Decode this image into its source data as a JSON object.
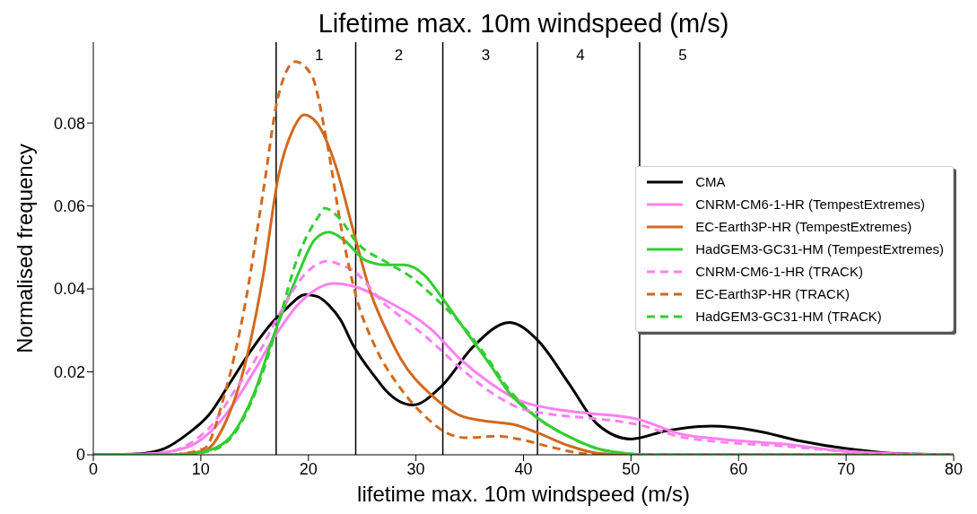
{
  "chart_data": {
    "type": "line",
    "title": "Lifetime max. 10m windspeed (m/s)",
    "xlabel": "lifetime max. 10m windspeed (m/s)",
    "ylabel": "Normalised frequency",
    "xlim": [
      0,
      80
    ],
    "xticks": [
      0,
      10,
      20,
      30,
      40,
      50,
      60,
      70,
      80
    ],
    "ylim": [
      0,
      0.0995
    ],
    "yticks": [
      0,
      0.02,
      0.04,
      0.06,
      0.08
    ],
    "grid": false,
    "legend": "right",
    "marker": "none",
    "ref_lines": [
      {
        "axis": "x",
        "value": 17.0,
        "color": "#000000"
      },
      {
        "axis": "x",
        "value": 24.4,
        "color": "#000000"
      },
      {
        "axis": "x",
        "value": 32.5,
        "color": "#000000"
      },
      {
        "axis": "x",
        "value": 41.3,
        "color": "#000000"
      },
      {
        "axis": "x",
        "value": 50.8,
        "color": "#000000"
      }
    ],
    "annotations": [
      "1",
      "2",
      "3",
      "4",
      "5"
    ],
    "series": [
      {
        "name": "CMA",
        "color": "#000000",
        "line_style": "solid",
        "x": [
          0,
          4,
          6.6,
          8.8,
          10.8,
          12.7,
          14.7,
          16.6,
          18.0,
          19.7,
          20.8,
          21.9,
          23.0,
          24.1,
          26.4,
          27.2,
          29.7,
          32.4,
          35.3,
          38.7,
          41.4,
          44.2,
          46.9,
          50.0,
          53.3,
          57.5,
          61.6,
          65.8,
          70.0,
          74.1,
          80
        ],
        "values": [
          0,
          0.0002,
          0.0015,
          0.0051,
          0.0098,
          0.0173,
          0.0253,
          0.0318,
          0.0354,
          0.0386,
          0.0382,
          0.0361,
          0.0325,
          0.0267,
          0.0181,
          0.0155,
          0.012,
          0.0166,
          0.026,
          0.0319,
          0.0274,
          0.0173,
          0.0073,
          0.0038,
          0.0058,
          0.0069,
          0.0058,
          0.0033,
          0.0015,
          0.0004,
          0
        ]
      },
      {
        "name": "CNRM-CM6-1-HR (TempestExtremes)",
        "color": "#ff80f0",
        "line_style": "solid",
        "x": [
          0,
          5,
          8.8,
          11.0,
          12.9,
          14.8,
          16.8,
          19.0,
          20.6,
          22.3,
          24.5,
          27.2,
          31.4,
          34.1,
          36.9,
          39.7,
          42.5,
          45.3,
          50.6,
          54.5,
          58.7,
          64.2,
          69.8,
          75.3,
          80
        ],
        "values": [
          0,
          0.0002,
          0.0019,
          0.0058,
          0.0117,
          0.0195,
          0.0282,
          0.0361,
          0.0397,
          0.0413,
          0.0404,
          0.0372,
          0.0303,
          0.0231,
          0.0173,
          0.013,
          0.0112,
          0.0102,
          0.0086,
          0.0051,
          0.0037,
          0.0026,
          0.0009,
          0.0002,
          0
        ]
      },
      {
        "name": "EC-Earth3P-HR (TempestExtremes)",
        "color": "#d2691e",
        "line_style": "solid",
        "x": [
          0,
          7,
          10.3,
          12.2,
          14.1,
          15.8,
          17.2,
          18.6,
          19.6,
          20.8,
          22.5,
          24.1,
          25.8,
          27.2,
          28.6,
          31.4,
          34.1,
          36.9,
          39.1,
          41.4,
          44.2,
          46.9,
          50,
          80
        ],
        "values": [
          0,
          0,
          0.0009,
          0.0073,
          0.0217,
          0.0433,
          0.067,
          0.0786,
          0.082,
          0.08,
          0.07,
          0.0548,
          0.039,
          0.0303,
          0.0231,
          0.0145,
          0.0095,
          0.008,
          0.0073,
          0.0052,
          0.0022,
          0.0004,
          0,
          0
        ]
      },
      {
        "name": "HadGEM3-GC31-HM (TempestExtremes)",
        "color": "#32cd32",
        "line_style": "solid",
        "x": [
          0,
          8,
          10.8,
          13.0,
          14.9,
          16.8,
          19.0,
          20.6,
          21.9,
          23.4,
          25.3,
          27.2,
          28.9,
          30.8,
          32.5,
          34.7,
          36.9,
          38.6,
          41.4,
          44.2,
          47.5,
          52,
          80
        ],
        "values": [
          0,
          0,
          0.0011,
          0.0051,
          0.0145,
          0.029,
          0.0433,
          0.0519,
          0.0537,
          0.0516,
          0.0469,
          0.0458,
          0.0458,
          0.0433,
          0.0376,
          0.0296,
          0.0217,
          0.0152,
          0.0087,
          0.0044,
          0.0011,
          0,
          0
        ]
      },
      {
        "name": "CNRM-CM6-1-HR (TRACK)",
        "color": "#ff80f0",
        "line_style": "dashed",
        "x": [
          0,
          6,
          10.8,
          12.9,
          15.1,
          17.3,
          19.6,
          21.8,
          23.0,
          24.0,
          27.2,
          28.6,
          31.4,
          34.1,
          36.9,
          39.7,
          42.5,
          46.7,
          50.6,
          54.5,
          58.7,
          64.2,
          69.8,
          75,
          80
        ],
        "values": [
          0,
          0.0003,
          0.0065,
          0.0145,
          0.0231,
          0.0339,
          0.0433,
          0.0467,
          0.0458,
          0.0447,
          0.0361,
          0.0333,
          0.0274,
          0.021,
          0.0152,
          0.0112,
          0.0098,
          0.0087,
          0.0073,
          0.0044,
          0.003,
          0.0021,
          0.0008,
          0.0001,
          0
        ]
      },
      {
        "name": "EC-Earth3P-HR (TRACK)",
        "color": "#d2691e",
        "line_style": "dashed",
        "x": [
          0,
          7,
          10.3,
          12.2,
          14.1,
          15.8,
          17.2,
          18.8,
          20.3,
          21.7,
          23.1,
          24.5,
          26.1,
          28.6,
          30.8,
          33.0,
          34.7,
          37.5,
          39.7,
          42.5,
          45.3,
          48,
          80
        ],
        "values": [
          0,
          0,
          0.0015,
          0.0145,
          0.0361,
          0.0635,
          0.0865,
          0.0948,
          0.0915,
          0.0757,
          0.0541,
          0.0376,
          0.0267,
          0.0159,
          0.0094,
          0.0051,
          0.0041,
          0.0045,
          0.0037,
          0.0019,
          0.0004,
          0,
          0
        ]
      },
      {
        "name": "HadGEM3-GC31-HM (TRACK)",
        "color": "#32cd32",
        "line_style": "dashed",
        "x": [
          0,
          8,
          11.0,
          13.3,
          15.2,
          17.2,
          19.0,
          21.0,
          21.5,
          22.9,
          24.5,
          27.2,
          29.7,
          31.9,
          34.1,
          36.3,
          38.6,
          41.4,
          44.2,
          47.5,
          52,
          80
        ],
        "values": [
          0,
          0,
          0.001,
          0.0058,
          0.0159,
          0.0318,
          0.0476,
          0.0577,
          0.0595,
          0.057,
          0.0512,
          0.0465,
          0.0426,
          0.0375,
          0.0318,
          0.0246,
          0.0159,
          0.0087,
          0.0044,
          0.0011,
          0,
          0
        ]
      }
    ]
  }
}
